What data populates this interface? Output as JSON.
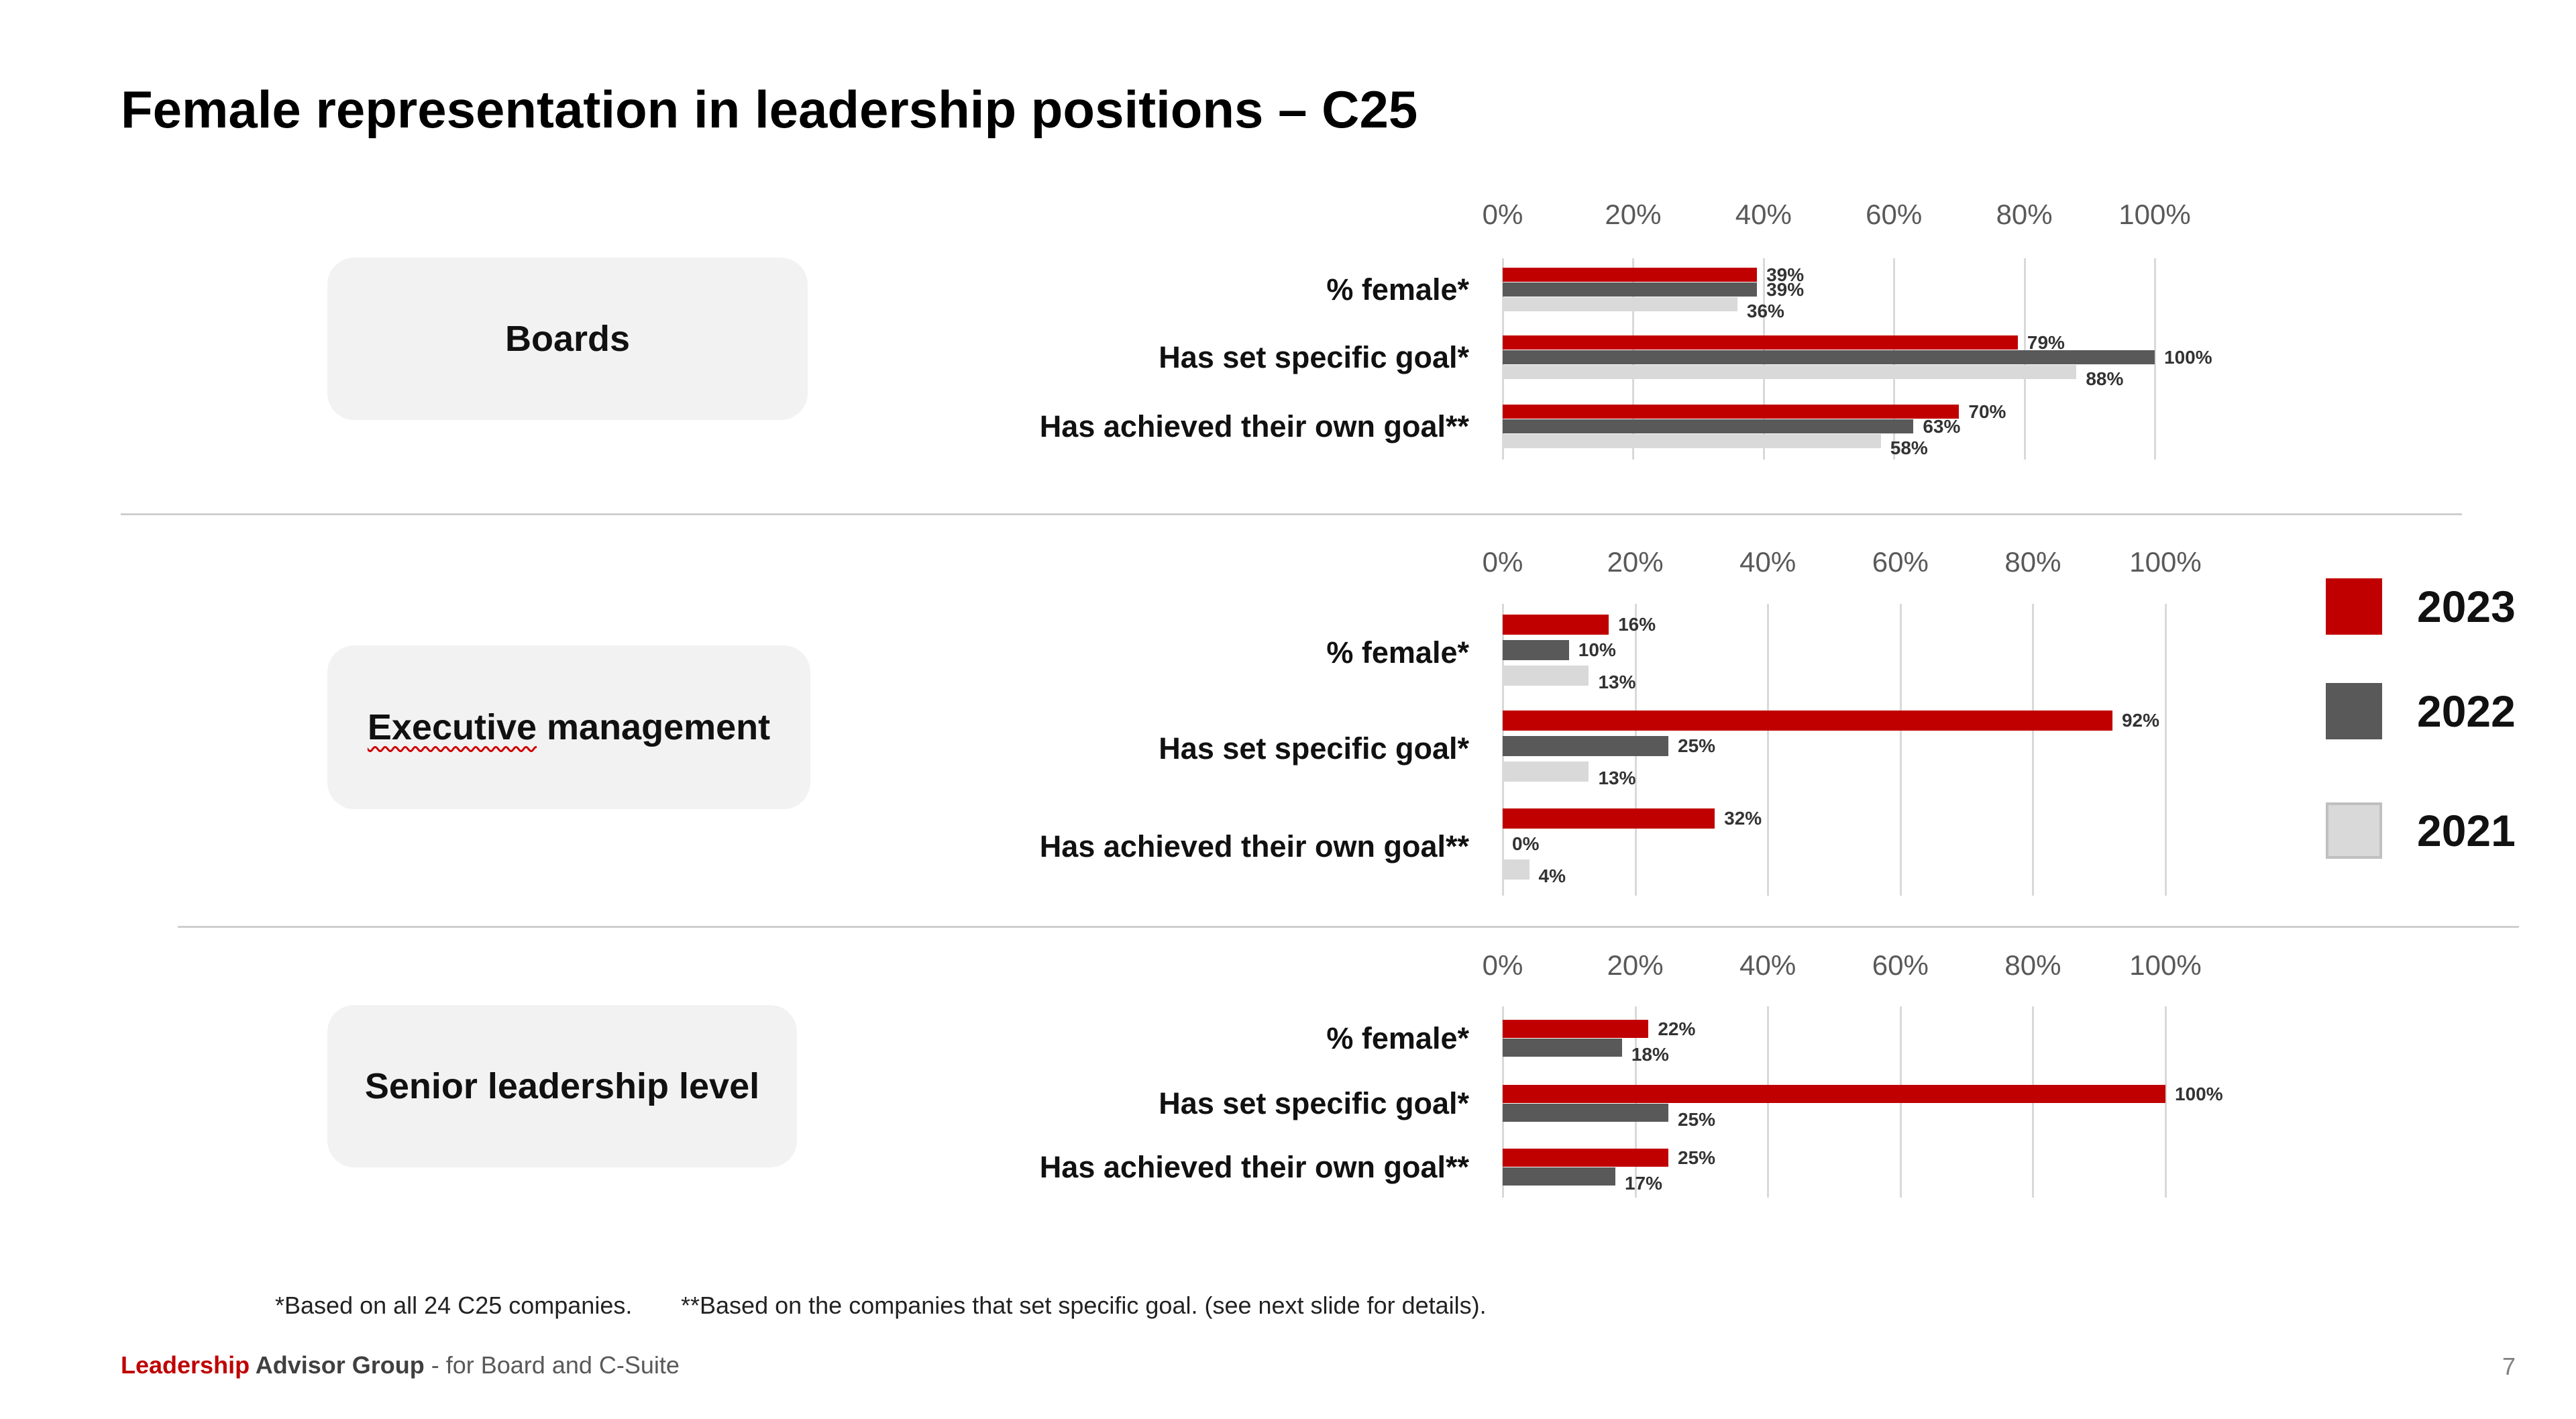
{
  "title": "Female representation in leadership positions – C25",
  "colors": {
    "y2023": "#c00000",
    "y2022": "#595959",
    "y2021": "#d9d9d9"
  },
  "legend": [
    {
      "label": "2023",
      "color": "#c00000"
    },
    {
      "label": "2022",
      "color": "#595959"
    },
    {
      "label": "2021",
      "color": "#d9d9d9"
    }
  ],
  "sections": [
    {
      "label": "Boards",
      "underline": false
    },
    {
      "label_underlined": "Executive",
      "label_rest": " management",
      "underline": true
    },
    {
      "label": "Senior leadership level",
      "underline": false
    }
  ],
  "chart_data": [
    {
      "type": "bar",
      "orientation": "horizontal",
      "section": "Boards",
      "ticks": [
        "0%",
        "20%",
        "40%",
        "60%",
        "80%",
        "100%"
      ],
      "xlim": [
        0,
        100
      ],
      "categories": [
        "% female*",
        "Has set specific goal*",
        "Has achieved their own goal**"
      ],
      "series": [
        {
          "name": "2023",
          "values": [
            39,
            79,
            70
          ],
          "labels": [
            "39%",
            "79%",
            "70%"
          ]
        },
        {
          "name": "2022",
          "values": [
            39,
            100,
            63
          ],
          "labels": [
            "39%",
            "100%",
            "63%"
          ]
        },
        {
          "name": "2021",
          "values": [
            36,
            88,
            58
          ],
          "labels": [
            "36%",
            "88%",
            "58%"
          ]
        }
      ]
    },
    {
      "type": "bar",
      "orientation": "horizontal",
      "section": "Executive management",
      "ticks": [
        "0%",
        "20%",
        "40%",
        "60%",
        "80%",
        "100%"
      ],
      "xlim": [
        0,
        100
      ],
      "categories": [
        "% female*",
        "Has set specific goal*",
        "Has achieved their own goal**"
      ],
      "series": [
        {
          "name": "2023",
          "values": [
            16,
            92,
            32
          ],
          "labels": [
            "16%",
            "92%",
            "32%"
          ]
        },
        {
          "name": "2022",
          "values": [
            10,
            25,
            0
          ],
          "labels": [
            "10%",
            "25%",
            "0%"
          ]
        },
        {
          "name": "2021",
          "values": [
            13,
            13,
            4
          ],
          "labels": [
            "13%",
            "13%",
            "4%"
          ]
        }
      ]
    },
    {
      "type": "bar",
      "orientation": "horizontal",
      "section": "Senior leadership level",
      "ticks": [
        "0%",
        "20%",
        "40%",
        "60%",
        "80%",
        "100%"
      ],
      "xlim": [
        0,
        100
      ],
      "categories": [
        "% female*",
        "Has set specific goal*",
        "Has achieved their own goal**"
      ],
      "series": [
        {
          "name": "2023",
          "values": [
            22,
            100,
            25
          ],
          "labels": [
            "22%",
            "100%",
            "25%"
          ]
        },
        {
          "name": "2022",
          "values": [
            18,
            25,
            17
          ],
          "labels": [
            "18%",
            "25%",
            "17%"
          ]
        }
      ]
    }
  ],
  "footnotes": {
    "a": "*Based on all 24 C25 companies.",
    "b": "**Based on the companies that set specific goal. (see next slide for details)."
  },
  "footer": {
    "brand_red": "Leadership",
    "brand_dark": " Advisor Group",
    "rest": " - for Board and C-Suite"
  },
  "page_number": "7"
}
